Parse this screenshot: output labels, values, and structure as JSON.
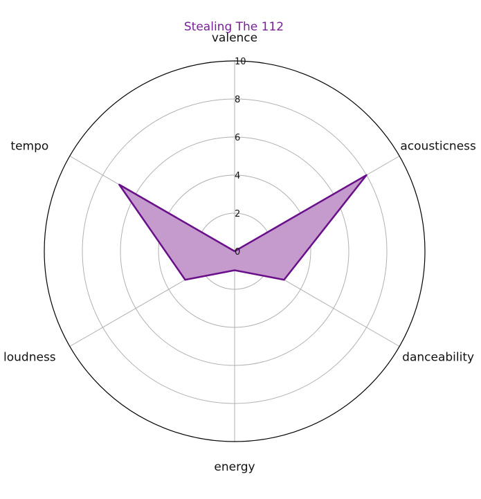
{
  "chart_data": {
    "type": "radar",
    "title": "Stealing The 112",
    "axes": [
      "valence",
      "acousticness",
      "danceability",
      "energy",
      "loudness",
      "tempo"
    ],
    "series": [
      {
        "values": [
          0,
          8,
          3,
          1,
          3,
          7
        ]
      }
    ],
    "rlim": [
      0,
      10
    ],
    "rticks": [
      "0",
      "2",
      "4",
      "6",
      "8",
      "10"
    ],
    "grid": true,
    "colors": {
      "line": "#6a0f8a",
      "fill": "#c49bcc",
      "title": "#7a1f9a"
    }
  }
}
